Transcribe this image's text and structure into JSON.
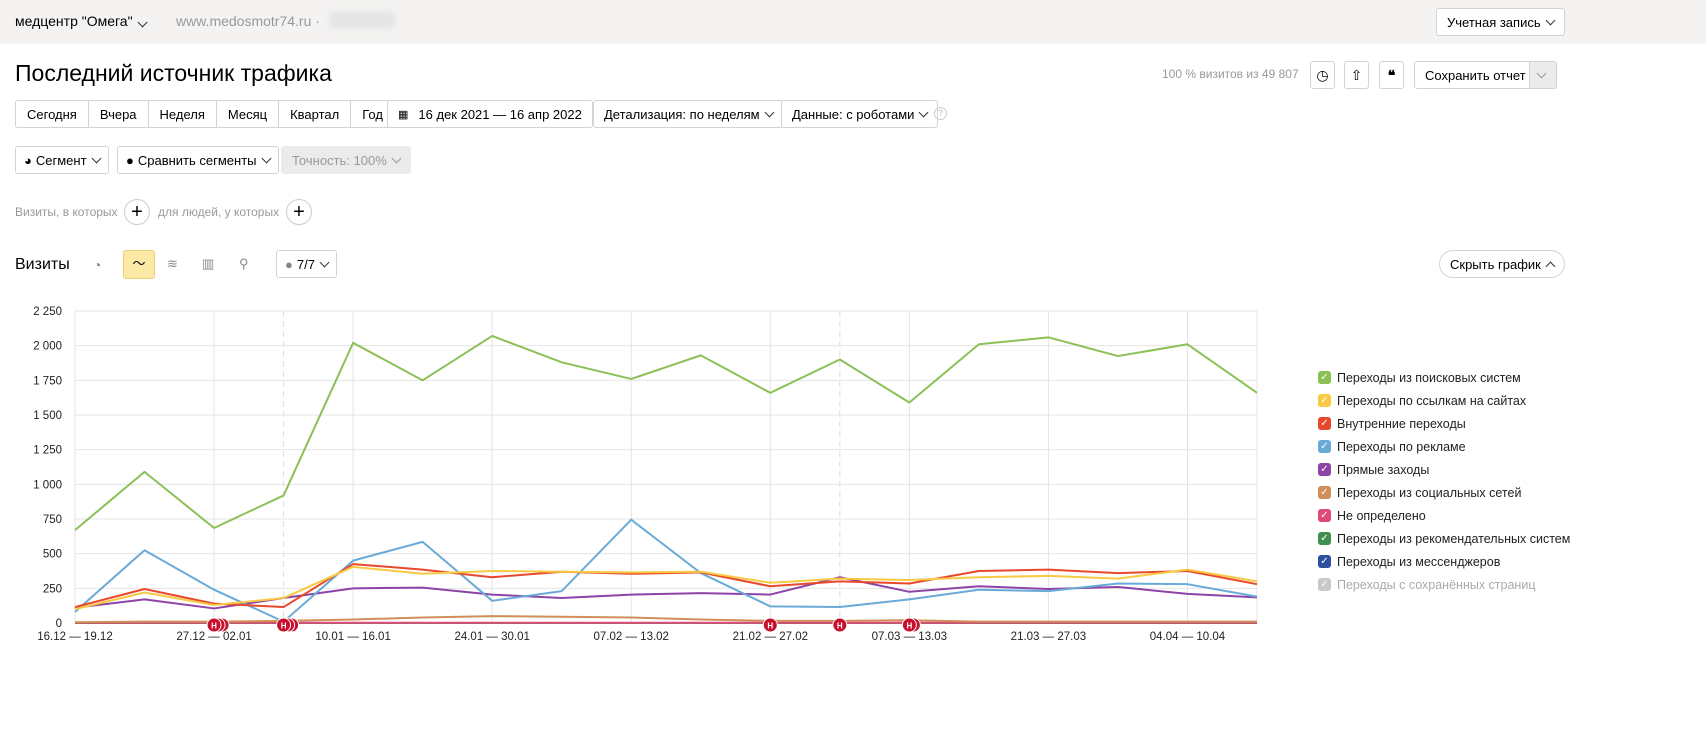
{
  "topbar": {
    "counter_name": "медцентр \"Омега\"",
    "site": "www.medosmotr74.ru ·",
    "account_label": "Учетная запись"
  },
  "header": {
    "title": "Последний источник трафика",
    "visits_info": "100 % визитов из 49 807",
    "save_label": "Сохранить отчет"
  },
  "periods": [
    "Сегодня",
    "Вчера",
    "Неделя",
    "Месяц",
    "Квартал",
    "Год"
  ],
  "date_range": "16 дек 2021 — 16 апр 2022",
  "detail": "Детализация: по неделям",
  "data_mode": "Данные: с роботами",
  "segment": {
    "segment_label": "Сегмент",
    "compare_label": "Сравнить сегменты",
    "accuracy_label": "Точность: 100%"
  },
  "filters": {
    "visits_label": "Визиты, в которых",
    "people_label": "для людей, у которых"
  },
  "chart_header": {
    "title": "Визиты",
    "annotations_count": "7/7",
    "hide_label": "Скрыть график",
    "icons": [
      "pie-chart-icon",
      "line-chart-icon",
      "area-chart-icon",
      "bar-chart-icon",
      "map-icon"
    ],
    "active_icon": "line-chart-icon"
  },
  "chart_data": {
    "type": "line",
    "ylim": [
      0,
      2250
    ],
    "yticks": [
      "0",
      "250",
      "500",
      "750",
      "1 000",
      "1 250",
      "1 500",
      "1 750",
      "2 000",
      "2 250"
    ],
    "xticks": [
      "16.12 — 19.12",
      "27.12 — 02.01",
      "10.01 — 16.01",
      "24.01 — 30.01",
      "07.02 — 13.02",
      "21.02 — 27.02",
      "07.03 — 13.03",
      "21.03 — 27.03",
      "04.04 — 10.04"
    ],
    "grid": true,
    "legend_position": "right",
    "series": [
      {
        "name": "Переходы из поисковых систем",
        "color": "#8bc057",
        "values": [
          670,
          1090,
          685,
          920,
          2020,
          1750,
          2070,
          1880,
          1760,
          1930,
          1660,
          1900,
          1590,
          2010,
          2060,
          1925,
          2010,
          1660
        ]
      },
      {
        "name": "Переходы по ссылкам на сайтах",
        "color": "#f8c943",
        "values": [
          100,
          220,
          130,
          180,
          405,
          355,
          375,
          370,
          365,
          370,
          290,
          320,
          310,
          330,
          340,
          320,
          385,
          300
        ]
      },
      {
        "name": "Внутренние переходы",
        "color": "#e8492c",
        "values": [
          115,
          245,
          140,
          115,
          425,
          385,
          330,
          370,
          355,
          365,
          265,
          300,
          285,
          375,
          385,
          360,
          375,
          280
        ]
      },
      {
        "name": "Переходы по рекламе",
        "color": "#6aaad8",
        "values": [
          80,
          525,
          240,
          10,
          450,
          585,
          160,
          230,
          745,
          360,
          120,
          115,
          170,
          240,
          230,
          285,
          280,
          190
        ]
      },
      {
        "name": "Прямые заходы",
        "color": "#8e44a6",
        "values": [
          110,
          170,
          105,
          180,
          250,
          255,
          205,
          180,
          205,
          215,
          205,
          330,
          225,
          265,
          245,
          260,
          210,
          185
        ]
      },
      {
        "name": "Переходы из социальных сетей",
        "color": "#d08e58",
        "values": [
          5,
          10,
          10,
          15,
          25,
          40,
          50,
          45,
          40,
          25,
          15,
          15,
          20,
          10,
          10,
          10,
          10,
          10
        ]
      },
      {
        "name": "Не определено",
        "color": "#e04a78",
        "values": [
          2,
          2,
          2,
          2,
          2,
          2,
          2,
          2,
          2,
          2,
          2,
          2,
          2,
          2,
          2,
          2,
          2,
          2
        ]
      },
      {
        "name": "Переходы из рекомендательных систем",
        "color": "#3f8f4f",
        "values": [
          0,
          0,
          0,
          0,
          0,
          0,
          0,
          0,
          0,
          0,
          0,
          0,
          0,
          0,
          0,
          0,
          0,
          0
        ]
      },
      {
        "name": "Переходы из мессенджеров",
        "color": "#2f4fa0",
        "values": [
          0,
          0,
          0,
          0,
          0,
          0,
          0,
          0,
          0,
          0,
          0,
          0,
          0,
          0,
          0,
          0,
          0,
          0
        ]
      },
      {
        "name": "Переходы с сохранённых страниц",
        "color": "#c8c8c8",
        "values": [],
        "disabled": true
      }
    ],
    "annotation_label": "Н"
  }
}
